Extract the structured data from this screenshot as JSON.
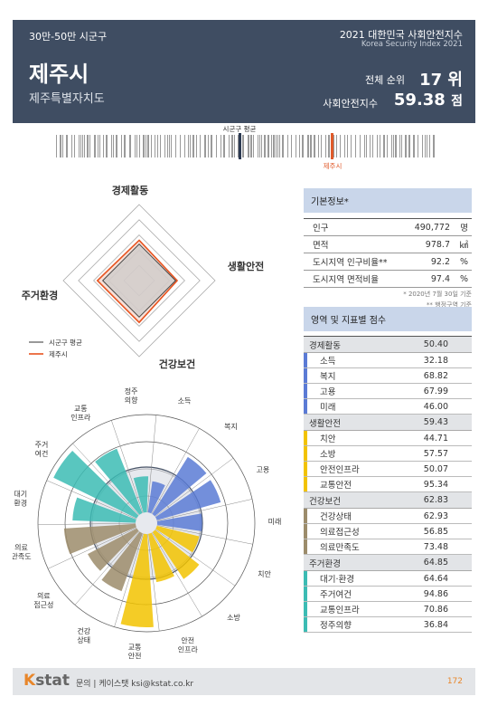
{
  "header": {
    "category": "30만-50만 시군구",
    "city": "제주시",
    "province": "제주특별자치도",
    "title": "2021 대한민국 사회안전지수",
    "subtitle": "Korea Security Index 2021",
    "rank_label": "전체 순위",
    "rank": "17 위",
    "score_label": "사회안전지수",
    "score_value": "59.38",
    "score_unit": "점"
  },
  "barcode": {
    "avg_label": "시군구 평균",
    "city_label": "제주시"
  },
  "radar": {
    "labels": [
      "경제활동",
      "생활안전",
      "건강보건",
      "주거환경"
    ],
    "legend_avg": "시군구 평균",
    "legend_city": "제주시",
    "avg_values": [
      0.48,
      0.48,
      0.48,
      0.48
    ],
    "city_values": [
      0.53,
      0.5,
      0.55,
      0.55
    ]
  },
  "basic_info": {
    "title": "기본정보*",
    "rows": [
      {
        "label": "인구",
        "value": "490,772",
        "unit": "명"
      },
      {
        "label": "면적",
        "value": "978.7",
        "unit": "㎢"
      },
      {
        "label": "도시지역 인구비율**",
        "value": "92.2",
        "unit": "%"
      },
      {
        "label": "도시지역 면적비율",
        "value": "97.4",
        "unit": "%"
      }
    ],
    "note1": "* 2020년 7월 30일 기준",
    "note2": "** 행정구역 기준"
  },
  "scores": {
    "title": "영역 및 지표별 점수",
    "sections": [
      {
        "name": "경제활동",
        "value": "50.40",
        "color": "#5b7bd5",
        "items": [
          {
            "label": "소득",
            "value": "32.18"
          },
          {
            "label": "복지",
            "value": "68.82"
          },
          {
            "label": "고용",
            "value": "67.99"
          },
          {
            "label": "미래",
            "value": "46.00"
          }
        ]
      },
      {
        "name": "생활안전",
        "value": "59.43",
        "color": "#f2c300",
        "items": [
          {
            "label": "치안",
            "value": "44.71"
          },
          {
            "label": "소방",
            "value": "57.57"
          },
          {
            "label": "안전인프라",
            "value": "50.07"
          },
          {
            "label": "교통안전",
            "value": "95.34"
          }
        ]
      },
      {
        "name": "건강보건",
        "value": "62.83",
        "color": "#9c8c6b",
        "items": [
          {
            "label": "건강상태",
            "value": "62.93"
          },
          {
            "label": "의료접근성",
            "value": "56.85"
          },
          {
            "label": "의료만족도",
            "value": "73.48"
          }
        ]
      },
      {
        "name": "주거환경",
        "value": "64.85",
        "color": "#3cbcb4",
        "items": [
          {
            "label": "대기·환경",
            "value": "64.64"
          },
          {
            "label": "주거여건",
            "value": "94.86"
          },
          {
            "label": "교통인프라",
            "value": "70.86"
          },
          {
            "label": "정주의향",
            "value": "36.84"
          }
        ]
      }
    ]
  },
  "polar": {
    "labels": [
      "소득",
      "복지",
      "고용",
      "미래",
      "치안",
      "소방",
      "안전\n인프라",
      "교통\n안전",
      "건강\n상태",
      "의료\n접근성",
      "의료\n만족도",
      "대기\n환경",
      "주거\n여건",
      "교통\n인프라",
      "정주\n의향"
    ],
    "values": [
      32.18,
      68.82,
      67.99,
      46.0,
      44.71,
      57.57,
      50.07,
      95.34,
      62.93,
      56.85,
      73.48,
      64.64,
      94.86,
      70.86,
      36.84
    ],
    "colors": [
      "#5b7bd5",
      "#5b7bd5",
      "#5b7bd5",
      "#5b7bd5",
      "#f2c300",
      "#f2c300",
      "#f2c300",
      "#f2c300",
      "#9c8c6b",
      "#9c8c6b",
      "#9c8c6b",
      "#3cbcb4",
      "#3cbcb4",
      "#3cbcb4",
      "#3cbcb4"
    ]
  },
  "footer": {
    "logo_k": "K",
    "logo_rest": "stat",
    "contact": "문의 | 케이스탯 ksi@kstat.co.kr",
    "page": "172"
  }
}
